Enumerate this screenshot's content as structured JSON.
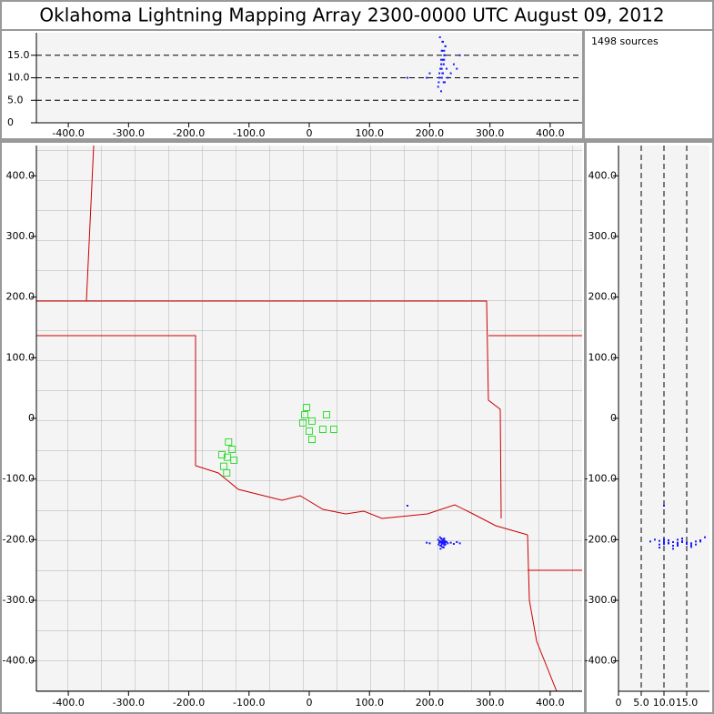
{
  "chart_data": {
    "type": "scatter",
    "title": "Oklahoma Lightning Mapping Array   2300-0000 UTC  August 09, 2012",
    "source_count_label": "1498 sources",
    "xlim": [
      -453,
      453
    ],
    "ylim": [
      -450,
      450
    ],
    "zlim": [
      0,
      20
    ],
    "xticks": [
      {
        "value": -400,
        "label": "-400.0"
      },
      {
        "value": -300,
        "label": "-300.0"
      },
      {
        "value": -200,
        "label": "-200.0"
      },
      {
        "value": -100,
        "label": "-100.0"
      },
      0,
      {
        "value": 100,
        "label": "100.0"
      },
      {
        "value": 200,
        "label": "200.0"
      },
      {
        "value": 300,
        "label": "300.0"
      },
      {
        "value": 400,
        "label": "400.0"
      }
    ],
    "yticks": [
      {
        "value": 400,
        "label": "400.0"
      },
      {
        "value": 300,
        "label": "300.0"
      },
      {
        "value": 200,
        "label": "200.0"
      },
      {
        "value": 100,
        "label": "100.0"
      },
      0,
      {
        "value": -100,
        "label": "-100.0"
      },
      {
        "value": -200,
        "label": "-200.0"
      },
      {
        "value": -300,
        "label": "-300.0"
      },
      {
        "value": -400,
        "label": "-400.0"
      }
    ],
    "zticks": [
      0,
      {
        "value": 5,
        "label": "5.0"
      },
      {
        "value": 10,
        "label": "10.0"
      },
      {
        "value": 15,
        "label": "15.0"
      }
    ],
    "zgrid": true,
    "source_color": "#1a1aff",
    "station_color": "#33dd33",
    "sources": {
      "x": [
        214,
        216,
        218,
        219,
        220,
        221,
        222,
        223,
        224,
        225,
        226,
        218,
        220,
        222,
        224,
        217,
        219,
        221,
        223,
        225,
        215,
        220,
        222,
        230,
        235,
        240,
        245,
        250,
        195,
        200,
        218,
        221,
        224,
        219,
        223,
        226,
        216,
        220,
        222,
        228,
        163
      ],
      "y": [
        -200,
        -202,
        -204,
        -198,
        -206,
        -203,
        -201,
        -205,
        -207,
        -202,
        -208,
        -210,
        -199,
        -204,
        -209,
        -196,
        -203,
        -206,
        -200,
        -205,
        -208,
        -204,
        -202,
        -206,
        -205,
        -207,
        -204,
        -206,
        -205,
        -206,
        -215,
        -212,
        -198,
        -210,
        -213,
        -203,
        -205,
        -207,
        -201,
        -204,
        -144
      ],
      "z": [
        8,
        10,
        12,
        14,
        16,
        18,
        11,
        13,
        15,
        9,
        17,
        12,
        10,
        14,
        16,
        19,
        7,
        11,
        13,
        15,
        9,
        12,
        14,
        10,
        11,
        13,
        12,
        15,
        10,
        11,
        12,
        16,
        14,
        13,
        9,
        17,
        11,
        10,
        18,
        12,
        10
      ]
    },
    "stations": {
      "x": [
        -4.5,
        -7.5,
        4.5,
        -10.6,
        28.7,
        22.6,
        0,
        40.8,
        4.5,
        -134,
        -128,
        -136,
        -145,
        -125,
        -142,
        -137
      ],
      "y": [
        18,
        6,
        -4.5,
        -7.5,
        6,
        -18,
        -21,
        -18,
        -34.5,
        -39,
        -51,
        -64,
        -60,
        -69,
        -79,
        -90
      ]
    }
  }
}
